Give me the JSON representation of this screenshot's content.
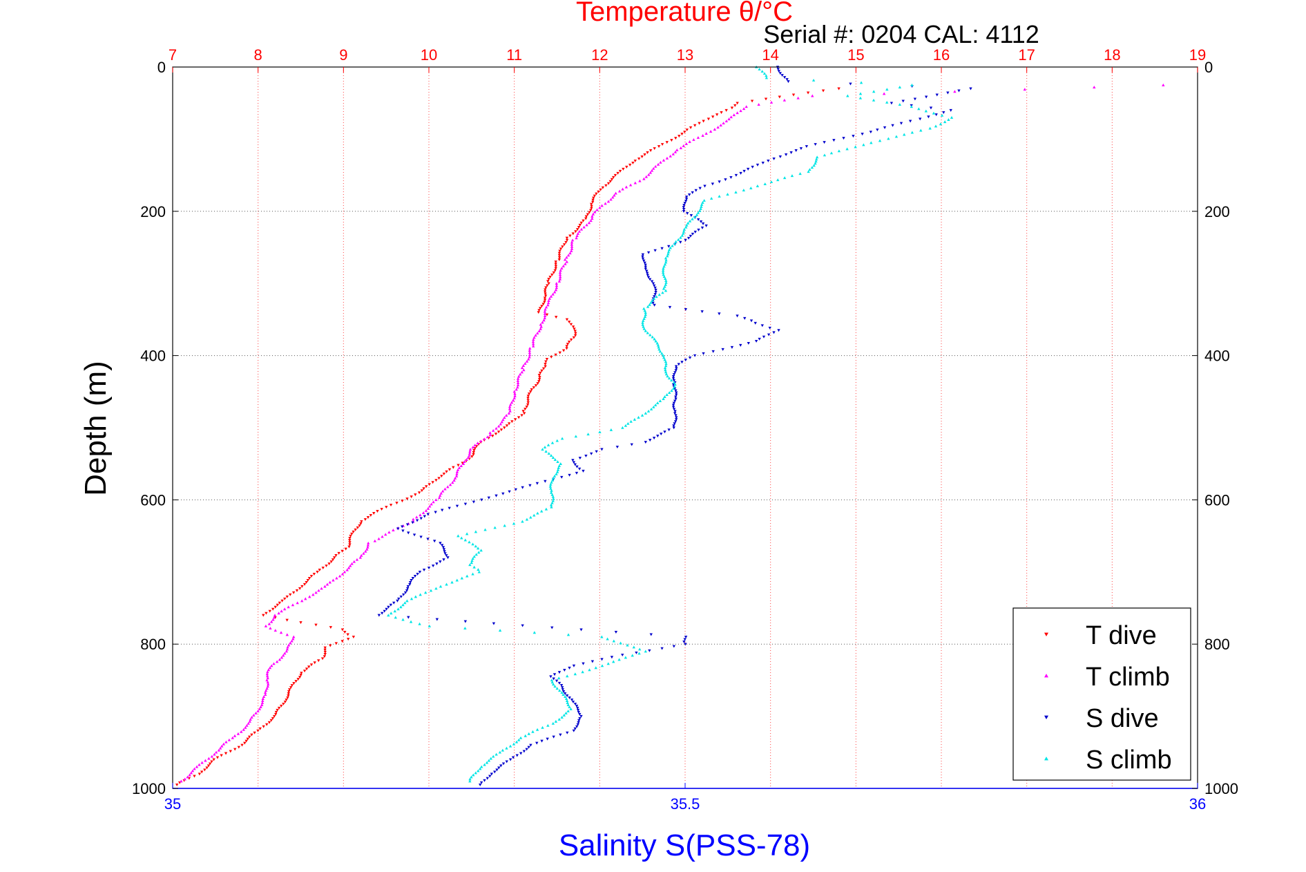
{
  "chart_data": {
    "type": "scatter",
    "title": "Temperature θ/°C",
    "subtitle": "Serial #: 0204  CAL: 4112",
    "ylabel": "Depth (m)",
    "xlabel_bottom": "Salinity S(PSS-78)",
    "x_top_axis": {
      "label": "Temperature θ/°C",
      "range": [
        7,
        19
      ],
      "ticks": [
        7,
        8,
        9,
        10,
        11,
        12,
        13,
        14,
        15,
        16,
        17,
        18,
        19
      ]
    },
    "x_bottom_axis": {
      "label": "Salinity S(PSS-78)",
      "range": [
        35,
        36
      ],
      "ticks": [
        35,
        35.5,
        36
      ]
    },
    "y_axis": {
      "label": "Depth (m)",
      "range": [
        0,
        1000
      ],
      "reversed": true,
      "ticks": [
        0,
        200,
        400,
        600,
        800,
        1000
      ]
    },
    "grid": true,
    "legend_position": "bottom-right",
    "colors": {
      "temperature_axis": "#ff0000",
      "salinity_axis": "#0000ff",
      "t_dive": "#ff0000",
      "t_climb": "#ff00ff",
      "s_dive": "#0000cc",
      "s_climb": "#00e5e5"
    },
    "series": [
      {
        "name": "T dive",
        "axis": "temperature",
        "marker": "triangle-down",
        "color": "#ff0000",
        "depth": [
          30,
          50,
          60,
          75,
          90,
          110,
          130,
          150,
          170,
          190,
          210,
          240,
          270,
          300,
          320,
          340,
          350,
          360,
          375,
          390,
          405,
          415,
          430,
          450,
          480,
          500,
          520,
          540,
          555,
          570,
          590,
          610,
          630,
          650,
          665,
          680,
          700,
          720,
          740,
          760,
          770,
          780,
          790,
          805,
          820,
          840,
          860,
          880,
          900,
          920,
          940,
          960,
          980,
          995
        ],
        "values": [
          14.8,
          13.6,
          13.5,
          13.2,
          13.0,
          12.7,
          12.4,
          12.2,
          12.0,
          11.9,
          11.85,
          11.6,
          11.5,
          11.4,
          11.35,
          11.3,
          11.6,
          11.7,
          11.7,
          11.6,
          11.4,
          11.35,
          11.3,
          11.2,
          11.1,
          10.9,
          10.6,
          10.5,
          10.3,
          10.1,
          9.9,
          9.5,
          9.2,
          9.1,
          9.05,
          8.9,
          8.7,
          8.5,
          8.3,
          8.05,
          8.5,
          9.0,
          9.1,
          8.8,
          8.75,
          8.5,
          8.4,
          8.3,
          8.2,
          8.0,
          7.8,
          7.5,
          7.3,
          7.05
        ]
      },
      {
        "name": "T climb",
        "axis": "temperature",
        "marker": "triangle-up",
        "color": "#ff00ff",
        "depth": [
          25,
          40,
          55,
          75,
          95,
          115,
          135,
          155,
          175,
          195,
          210,
          240,
          270,
          300,
          330,
          360,
          390,
          420,
          450,
          480,
          510,
          530,
          550,
          570,
          600,
          630,
          660,
          680,
          700,
          720,
          740,
          760,
          775,
          790,
          810,
          830,
          850,
          870,
          890,
          910,
          930,
          950,
          970,
          990
        ],
        "values": [
          18.6,
          14.5,
          13.7,
          13.5,
          13.2,
          12.9,
          12.7,
          12.5,
          12.2,
          12.0,
          11.9,
          11.7,
          11.6,
          11.5,
          11.4,
          11.3,
          11.2,
          11.1,
          11.0,
          10.95,
          10.7,
          10.5,
          10.4,
          10.3,
          10.1,
          9.8,
          9.3,
          9.2,
          9.0,
          8.8,
          8.5,
          8.2,
          8.1,
          8.4,
          8.35,
          8.15,
          8.1,
          8.1,
          8.0,
          7.9,
          7.7,
          7.5,
          7.3,
          7.1
        ]
      },
      {
        "name": "S dive",
        "axis": "salinity",
        "marker": "triangle-down",
        "color": "#0000cc",
        "depth": [
          0,
          20,
          30,
          50,
          60,
          75,
          90,
          110,
          130,
          150,
          165,
          180,
          200,
          220,
          240,
          260,
          280,
          300,
          330,
          345,
          355,
          365,
          380,
          400,
          415,
          440,
          460,
          480,
          500,
          520,
          530,
          545,
          560,
          580,
          600,
          620,
          640,
          660,
          680,
          700,
          720,
          740,
          760,
          780,
          790,
          800,
          815,
          830,
          845,
          860,
          880,
          900,
          920,
          940,
          960,
          980,
          995
        ],
        "values": [
          35.59,
          35.6,
          35.78,
          35.7,
          35.76,
          35.72,
          35.68,
          35.62,
          35.58,
          35.55,
          35.52,
          35.5,
          35.5,
          35.52,
          35.5,
          35.46,
          35.46,
          35.47,
          35.47,
          35.55,
          35.57,
          35.59,
          35.57,
          35.51,
          35.49,
          35.49,
          35.49,
          35.49,
          35.49,
          35.46,
          35.42,
          35.39,
          35.4,
          35.35,
          35.3,
          35.25,
          35.22,
          35.26,
          35.27,
          35.24,
          35.23,
          35.22,
          35.2,
          35.4,
          35.5,
          35.5,
          35.44,
          35.39,
          35.37,
          35.38,
          35.39,
          35.4,
          35.39,
          35.35,
          35.33,
          35.31,
          35.3
        ]
      },
      {
        "name": "S climb",
        "axis": "salinity",
        "marker": "triangle-up",
        "color": "#00e5e5",
        "depth": [
          0,
          15,
          25,
          40,
          55,
          70,
          85,
          105,
          125,
          145,
          165,
          185,
          205,
          225,
          245,
          265,
          285,
          310,
          335,
          360,
          380,
          400,
          420,
          440,
          460,
          480,
          500,
          515,
          530,
          550,
          570,
          590,
          610,
          630,
          650,
          670,
          690,
          700,
          720,
          740,
          760,
          775,
          790,
          810,
          830,
          850,
          870,
          890,
          910,
          930,
          950,
          970,
          990
        ],
        "values": [
          35.57,
          35.58,
          35.72,
          35.66,
          35.72,
          35.76,
          35.74,
          35.68,
          35.63,
          35.62,
          35.57,
          35.52,
          35.51,
          35.5,
          35.49,
          35.48,
          35.48,
          35.48,
          35.46,
          35.46,
          35.47,
          35.48,
          35.48,
          35.49,
          35.48,
          35.46,
          35.44,
          35.38,
          35.36,
          35.38,
          35.37,
          35.37,
          35.37,
          35.34,
          35.28,
          35.3,
          35.29,
          35.3,
          35.26,
          35.23,
          35.21,
          35.25,
          35.42,
          35.46,
          35.42,
          35.37,
          35.38,
          35.39,
          35.37,
          35.34,
          35.32,
          35.3,
          35.29
        ]
      }
    ],
    "legend": [
      "T dive",
      "T climb",
      "S dive",
      "S climb"
    ]
  }
}
